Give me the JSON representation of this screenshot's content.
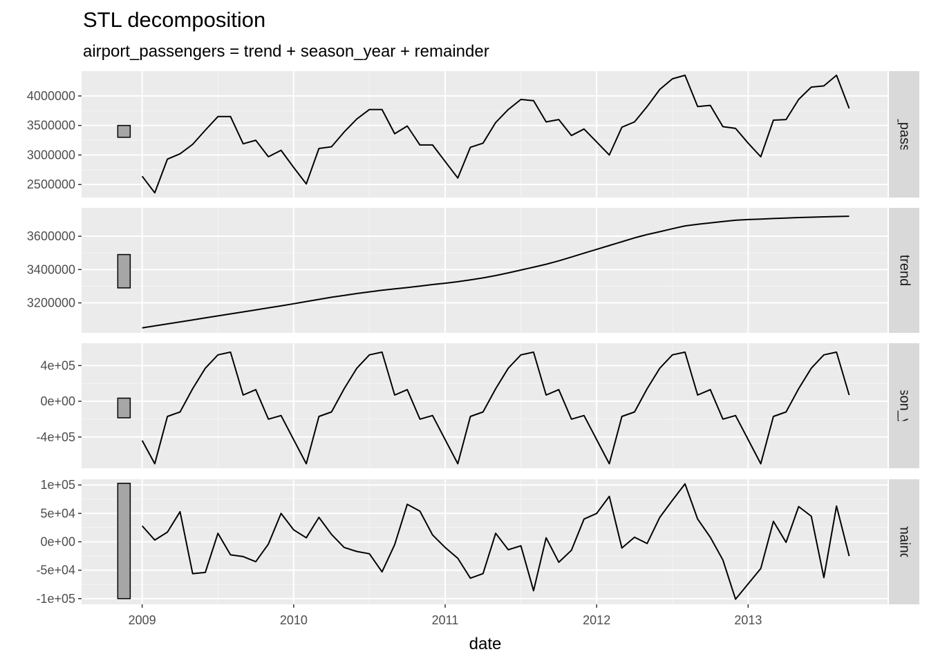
{
  "chart_data": {
    "type": "line",
    "title": "STL decomposition",
    "subtitle": "airport_passengers = trend + season_year + remainder",
    "xlabel": "date",
    "x_tick_labels": [
      "2009",
      "2010",
      "2011",
      "2012",
      "2013"
    ],
    "x_tick_values": [
      2009,
      2010,
      2011,
      2012,
      2013
    ],
    "xlim": [
      2008.6,
      2013.92
    ],
    "x": [
      "2009-01",
      "2009-02",
      "2009-03",
      "2009-04",
      "2009-05",
      "2009-06",
      "2009-07",
      "2009-08",
      "2009-09",
      "2009-10",
      "2009-11",
      "2009-12",
      "2010-01",
      "2010-02",
      "2010-03",
      "2010-04",
      "2010-05",
      "2010-06",
      "2010-07",
      "2010-08",
      "2010-09",
      "2010-10",
      "2010-11",
      "2010-12",
      "2011-01",
      "2011-02",
      "2011-03",
      "2011-04",
      "2011-05",
      "2011-06",
      "2011-07",
      "2011-08",
      "2011-09",
      "2011-10",
      "2011-11",
      "2011-12",
      "2012-01",
      "2012-02",
      "2012-03",
      "2012-04",
      "2012-05",
      "2012-06",
      "2012-07",
      "2012-08",
      "2012-09",
      "2012-10",
      "2012-11",
      "2012-12",
      "2013-01",
      "2013-02",
      "2013-03",
      "2013-04",
      "2013-05",
      "2013-06",
      "2013-07",
      "2013-08",
      "2013-09"
    ],
    "grid": true,
    "panels": [
      {
        "name": "airport_passengers",
        "ylim": [
          2280000,
          4420000
        ],
        "y_ticks": [
          2500000,
          3000000,
          3500000,
          4000000
        ],
        "y_tick_labels": [
          "2500000",
          "3000000",
          "3500000",
          "4000000"
        ],
        "scale_bar": [
          3300000,
          3500000
        ],
        "values": [
          2640000,
          2360000,
          2930000,
          3020000,
          3180000,
          3420000,
          3650000,
          3650000,
          3190000,
          3250000,
          2970000,
          3080000,
          2790000,
          2510000,
          3110000,
          3140000,
          3390000,
          3610000,
          3770000,
          3770000,
          3360000,
          3490000,
          3170000,
          3170000,
          2890000,
          2610000,
          3130000,
          3200000,
          3550000,
          3770000,
          3940000,
          3920000,
          3560000,
          3600000,
          3330000,
          3440000,
          3220000,
          3000000,
          3470000,
          3560000,
          3820000,
          4110000,
          4290000,
          4350000,
          3820000,
          3840000,
          3480000,
          3450000,
          3200000,
          2970000,
          3590000,
          3600000,
          3940000,
          4150000,
          4170000,
          4350000,
          3790000
        ]
      },
      {
        "name": "trend",
        "ylim": [
          3020000,
          3770000
        ],
        "y_ticks": [
          3200000,
          3400000,
          3600000
        ],
        "y_tick_labels": [
          "3200000",
          "3400000",
          "3600000"
        ],
        "scale_bar": [
          3290000,
          3490000
        ],
        "values": [
          3050000,
          3062000,
          3074000,
          3086000,
          3098000,
          3110000,
          3122000,
          3134000,
          3146000,
          3158000,
          3170000,
          3182000,
          3195000,
          3208000,
          3221000,
          3234000,
          3245000,
          3256000,
          3266000,
          3276000,
          3284000,
          3292000,
          3301000,
          3310000,
          3318000,
          3327000,
          3338000,
          3350000,
          3364000,
          3380000,
          3397000,
          3414000,
          3432000,
          3452000,
          3475000,
          3498000,
          3521000,
          3544000,
          3567000,
          3590000,
          3610000,
          3627000,
          3645000,
          3662000,
          3672000,
          3680000,
          3688000,
          3696000,
          3700000,
          3703000,
          3706000,
          3709000,
          3712000,
          3714000,
          3716000,
          3718000,
          3720000
        ]
      },
      {
        "name": "season_year",
        "ylim": [
          -750000,
          650000
        ],
        "y_ticks": [
          -400000,
          0,
          400000
        ],
        "y_tick_labels": [
          "-4e+05",
          "0e+00",
          "4e+05"
        ],
        "scale_bar": [
          -185000,
          35000
        ],
        "values": [
          -440000,
          -700000,
          -170000,
          -120000,
          140000,
          370000,
          520000,
          550000,
          70000,
          130000,
          -200000,
          -160000,
          -430000,
          -700000,
          -170000,
          -120000,
          140000,
          370000,
          520000,
          550000,
          70000,
          130000,
          -200000,
          -160000,
          -430000,
          -700000,
          -170000,
          -120000,
          140000,
          370000,
          520000,
          550000,
          70000,
          130000,
          -200000,
          -160000,
          -430000,
          -700000,
          -170000,
          -120000,
          140000,
          370000,
          520000,
          550000,
          70000,
          130000,
          -200000,
          -160000,
          -430000,
          -700000,
          -170000,
          -120000,
          140000,
          370000,
          520000,
          550000,
          70000
        ]
      },
      {
        "name": "remainder",
        "ylim": [
          -110000,
          110000
        ],
        "y_ticks": [
          -100000,
          -50000,
          0,
          50000,
          100000
        ],
        "y_tick_labels": [
          "-1e+05",
          "-5e+04",
          "0e+00",
          "5e+04",
          "1e+05"
        ],
        "scale_bar": [
          -100000,
          103000
        ],
        "values": [
          28000,
          3000,
          17000,
          53000,
          -56000,
          -54000,
          15000,
          -23000,
          -26000,
          -35000,
          -4000,
          50000,
          21000,
          7000,
          43000,
          13000,
          -10000,
          -17000,
          -21000,
          -53000,
          -5000,
          66000,
          54000,
          12000,
          -10000,
          -29000,
          -64000,
          -56000,
          15000,
          -14000,
          -7000,
          -86000,
          7000,
          -36000,
          -15000,
          40000,
          50000,
          80000,
          -11000,
          8000,
          -3000,
          43000,
          73000,
          102000,
          40000,
          8000,
          -32000,
          -101000,
          -74000,
          -47000,
          36000,
          -1000,
          62000,
          45000,
          -63000,
          63000,
          -25000
        ]
      }
    ]
  }
}
